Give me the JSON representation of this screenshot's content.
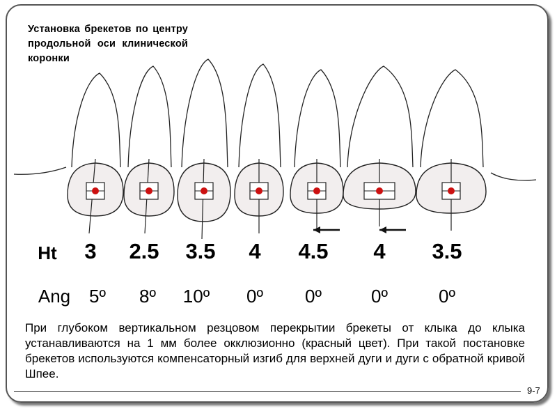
{
  "title": "Установка брекетов по центру продольной оси клинической коронки",
  "ht": {
    "label": "Ht",
    "values": [
      "3",
      "2.5",
      "3.5",
      "4",
      "4.5",
      "4",
      "3.5"
    ]
  },
  "ang": {
    "label": "Ang",
    "values": [
      "5º",
      "8º",
      "10º",
      "0º",
      "0º",
      "0º",
      "0º"
    ]
  },
  "paragraph": "При глубоком вертикальном резцовом перекрытии брекеты от клыка до клыка устанавливаются на 1 мм более окклюзионно (красный цвет). При такой постановке брекетов используются компенсаторный изгиб для верхней дуги и дуги с обратной кривой Шпее.",
  "page_number": "9-7",
  "colors": {
    "bracket_point": "#cc1111",
    "crown_fill": "#f2eeee"
  }
}
